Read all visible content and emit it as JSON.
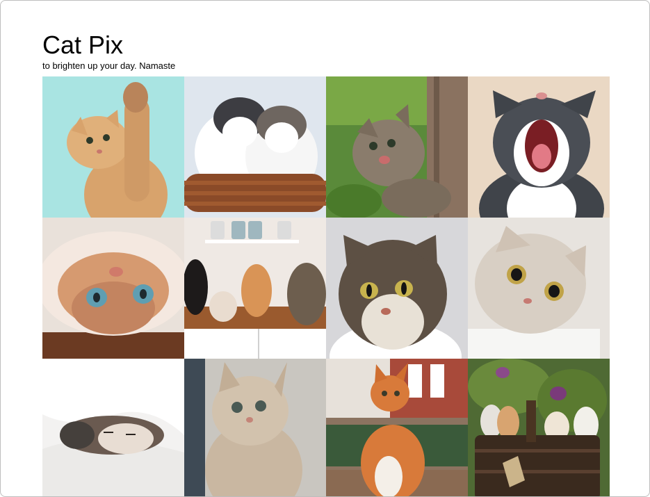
{
  "page": {
    "title": "Cat Pix",
    "subtitle": "to brighten up your day. Namaste"
  },
  "gallery": {
    "images": [
      {
        "name": "cat-photo-paw-raised",
        "bg": "#a9e4e2",
        "fur": "#d8a36c"
      },
      {
        "name": "cat-photo-kittens-in-basket",
        "bg": "#dfe6ee",
        "fur": "#ffffff"
      },
      {
        "name": "cat-photo-tabby-on-tree",
        "bg": "#5a8a3a",
        "fur": "#8a7c6c"
      },
      {
        "name": "cat-photo-yawning-cat",
        "bg": "#ead8c4",
        "fur": "#40444a"
      },
      {
        "name": "cat-photo-upside-down-cat",
        "bg": "#e9e1da",
        "fur": "#d69a70"
      },
      {
        "name": "cat-photo-kitchen-cats",
        "bg": "#efe9e4",
        "fur": "#b8763c"
      },
      {
        "name": "cat-photo-tabby-portrait",
        "bg": "#d7d7da",
        "fur": "#5d5044"
      },
      {
        "name": "cat-photo-surprised-cat",
        "bg": "#e7e3de",
        "fur": "#d8cfc4"
      },
      {
        "name": "cat-photo-cat-under-blanket",
        "bg": "#f3f2f1",
        "fur": "#6a5a50"
      },
      {
        "name": "cat-photo-fluffy-kitten",
        "bg": "#c9c6c0",
        "fur": "#c9b7a1"
      },
      {
        "name": "cat-photo-orange-cat-street",
        "bg": "#8c7360",
        "fur": "#d87a3a"
      },
      {
        "name": "cat-photo-kittens-in-basket-garden",
        "bg": "#4f6a34",
        "fur": "#e6e2dc"
      }
    ]
  }
}
